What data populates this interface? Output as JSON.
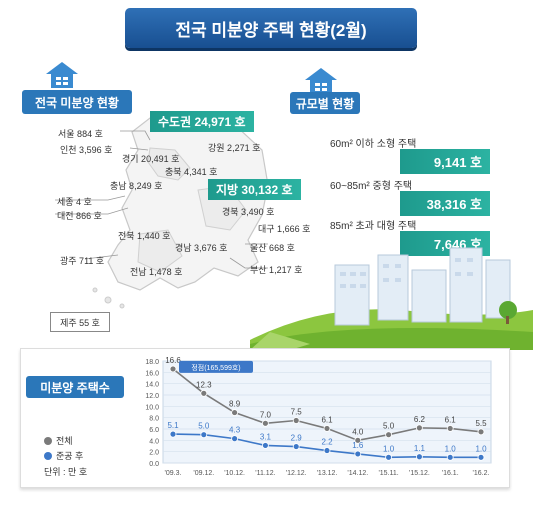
{
  "title": "전국 미분양 주택 현황(2월)",
  "sections": {
    "national": "전국 미분양 현황",
    "by_size": "규모별 현황",
    "count": "미분양 주택수"
  },
  "regions": {
    "capital": "수도권 24,971 호",
    "local": "지방 30,132 호"
  },
  "cities": [
    "서울 884 호",
    "인천 3,596 호",
    "경기 20,491 호",
    "강원 2,271 호",
    "충북 4,341 호",
    "충남 8,249 호",
    "세종 4 호",
    "대전 866 호",
    "경북 3,490 호",
    "대구 1,666 호",
    "전북 1,440 호",
    "경남 3,676 호",
    "울산 668 호",
    "광주 711 호",
    "전남 1,478 호",
    "부산 1,217 호"
  ],
  "jeju": "제주 55 호",
  "sizes": [
    {
      "label": "60m² 이하 소형 주택",
      "value": "9,141 호"
    },
    {
      "label": "60~85m² 중형 주택",
      "value": "38,316 호"
    },
    {
      "label": "85m² 초과 대형 주택",
      "value": "7,646 호"
    }
  ],
  "legend": {
    "total": "전체",
    "completed": "준공 후",
    "unit": "단위 : 만 호"
  },
  "colors": {
    "title": "#1f5fa5",
    "accent": "#2cb3a2",
    "total": "#7a7a7a",
    "completed": "#3d78c8"
  },
  "chart_data": {
    "type": "line",
    "categories": [
      "'09.3.",
      "'09.12.",
      "'10.12.",
      "'11.12.",
      "'12.12.",
      "'13.12.",
      "'14.12.",
      "'15.11.",
      "'15.12.",
      "'16.1.",
      "'16.2."
    ],
    "series": [
      {
        "name": "전체",
        "values": [
          16.6,
          12.3,
          8.9,
          7.0,
          7.5,
          6.1,
          4.0,
          5.0,
          6.2,
          6.1,
          5.5
        ]
      },
      {
        "name": "준공 후",
        "values": [
          5.1,
          5.0,
          4.3,
          3.1,
          2.9,
          2.2,
          1.6,
          1.0,
          1.1,
          1.0,
          1.0
        ]
      }
    ],
    "ylim": [
      0,
      18
    ],
    "yticks": [
      "0.0",
      "2.0",
      "4.0",
      "6.0",
      "8.0",
      "10.0",
      "12.0",
      "14.0",
      "16.0",
      "18.0"
    ],
    "annotation": "정점(165,599호)",
    "grid": true,
    "legend_position": "left"
  }
}
